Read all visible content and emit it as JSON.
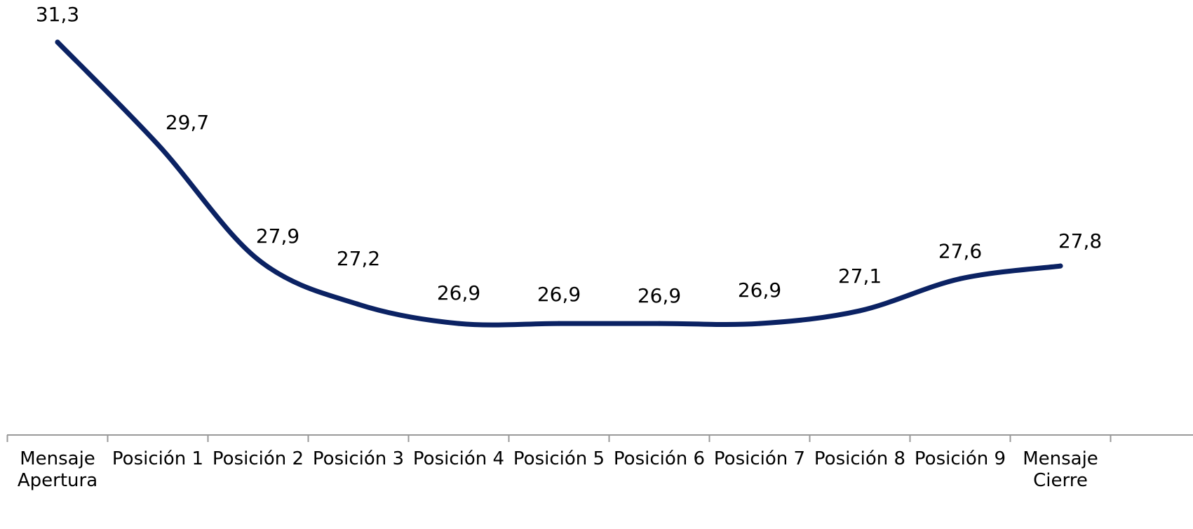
{
  "chart_data": {
    "type": "line",
    "categories": [
      "Mensaje Apertura",
      "Posición 1",
      "Posición 2",
      "Posición 3",
      "Posición 4",
      "Posición 5",
      "Posición 6",
      "Posición 7",
      "Posición 8",
      "Posición 9",
      "Mensaje Cierre"
    ],
    "values": [
      31.3,
      29.7,
      27.9,
      27.2,
      26.9,
      26.9,
      26.9,
      26.9,
      27.1,
      27.6,
      27.8
    ],
    "value_labels": [
      "31,3",
      "29,7",
      "27,9",
      "27,2",
      "26,9",
      "26,9",
      "26,9",
      "26,9",
      "27,1",
      "27,6",
      "27,8"
    ],
    "title": "",
    "xlabel": "",
    "ylabel": "",
    "grid": false,
    "legend": "none",
    "smooth": true,
    "colors": {
      "line": "#0b2263",
      "axis": "#999999"
    }
  }
}
